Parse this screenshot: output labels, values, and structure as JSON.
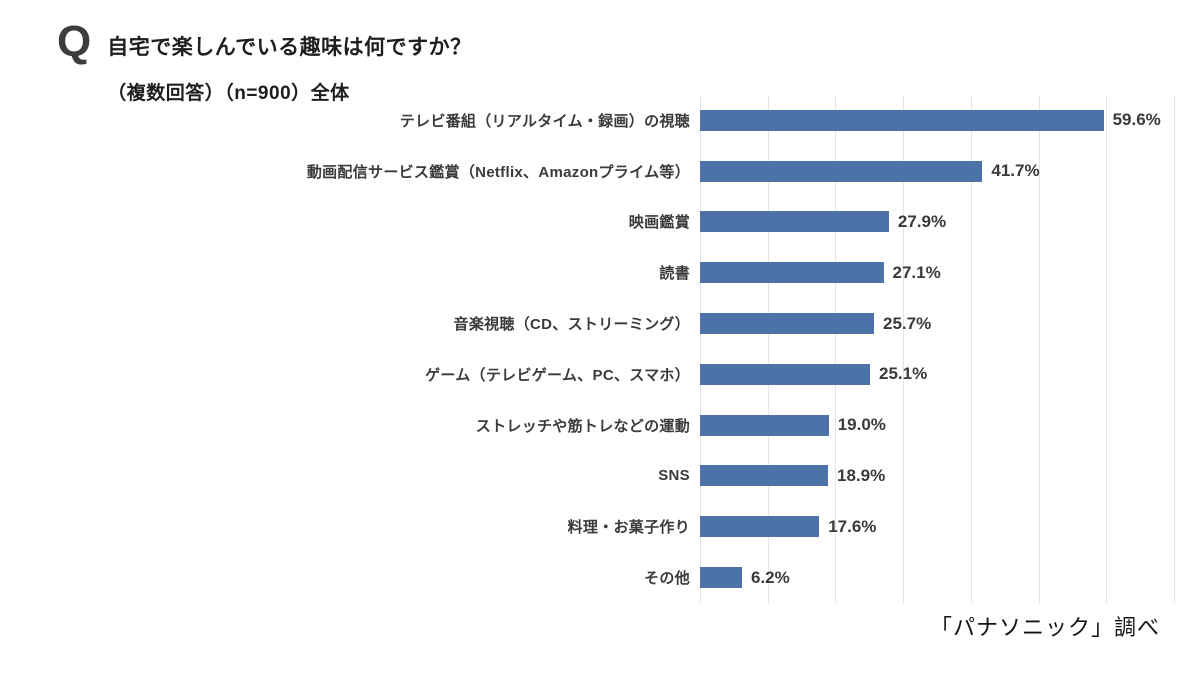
{
  "header": {
    "q_mark": "Q",
    "title": "自宅で楽しんでいる趣味は何ですか？",
    "subtitle": "（複数回答）（n=900）全体"
  },
  "chart_data": {
    "type": "bar",
    "orientation": "horizontal",
    "title": "自宅で楽しんでいる趣味は何ですか？（複数回答）（n=900）全体",
    "categories": [
      "テレビ番組（リアルタイム・録画）の視聴",
      "動画配信サービス鑑賞（Netflix、Amazonプライム等）",
      "映画鑑賞",
      "読書",
      "音楽視聴（CD、ストリーミング）",
      "ゲーム（テレビゲーム、PC、スマホ）",
      "ストレッチや筋トレなどの運動",
      "SNS",
      "料理・お菓子作り",
      "その他"
    ],
    "values": [
      59.6,
      41.7,
      27.9,
      27.1,
      25.7,
      25.1,
      19.0,
      18.9,
      17.6,
      6.2
    ],
    "value_labels": [
      "59.6%",
      "41.7%",
      "27.9%",
      "27.1%",
      "25.7%",
      "25.1%",
      "19.0%",
      "18.9%",
      "17.6%",
      "6.2%"
    ],
    "xlabel": "",
    "ylabel": "",
    "xlim": [
      0,
      70
    ],
    "grid_step": 10,
    "grid": true,
    "legend": false,
    "bar_color": "#4c72a8",
    "gridline_color": "#e1e5ed"
  },
  "footer": {
    "source": "「パナソニック」調べ"
  }
}
